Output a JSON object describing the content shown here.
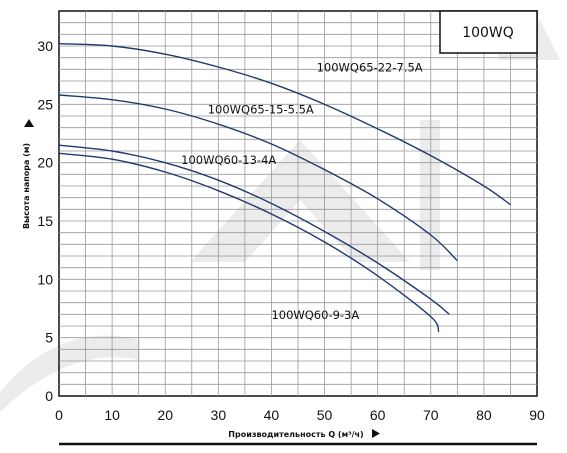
{
  "chart_data": {
    "type": "line",
    "title": "",
    "model_tag": "100WQ",
    "xlabel": "Производительность Q (м³/ч)",
    "ylabel": "Высота напора (м)",
    "xlim": [
      0,
      90
    ],
    "ylim": [
      0,
      33
    ],
    "xticks": [
      0,
      10,
      20,
      30,
      40,
      50,
      60,
      70,
      80,
      90
    ],
    "yticks": [
      0,
      5,
      10,
      15,
      20,
      25,
      30
    ],
    "grid": true,
    "line_color": "#1f3a6e",
    "series": [
      {
        "name": "100WQ65-22-7.5A",
        "x": [
          0,
          10,
          20,
          30,
          40,
          50,
          60,
          70,
          80,
          85
        ],
        "y": [
          30.2,
          30.0,
          29.3,
          28.2,
          26.8,
          25.0,
          22.9,
          20.6,
          18.0,
          16.4
        ]
      },
      {
        "name": "100WQ65-15-5.5A",
        "x": [
          0,
          10,
          20,
          30,
          40,
          50,
          60,
          70,
          75
        ],
        "y": [
          25.8,
          25.4,
          24.6,
          23.3,
          21.6,
          19.4,
          16.9,
          13.8,
          11.6
        ]
      },
      {
        "name": "100WQ60-13-4A",
        "x": [
          0,
          10,
          20,
          30,
          40,
          50,
          60,
          70,
          73.5
        ],
        "y": [
          21.5,
          21.0,
          20.0,
          18.5,
          16.5,
          14.1,
          11.4,
          8.3,
          7.0
        ]
      },
      {
        "name": "100WQ60-9-3A",
        "x": [
          0,
          10,
          20,
          30,
          40,
          50,
          60,
          70,
          71.5
        ],
        "y": [
          20.8,
          20.3,
          19.2,
          17.6,
          15.6,
          13.2,
          10.3,
          6.8,
          5.5
        ]
      }
    ]
  }
}
